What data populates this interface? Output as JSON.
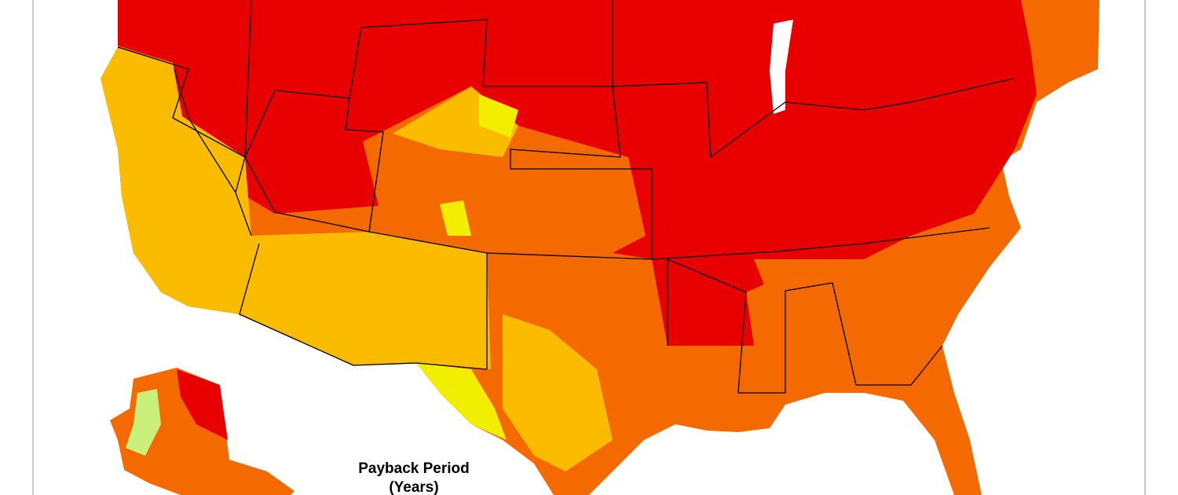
{
  "legend": {
    "title": [
      "Payback Period",
      "(Years)"
    ]
  }
}
